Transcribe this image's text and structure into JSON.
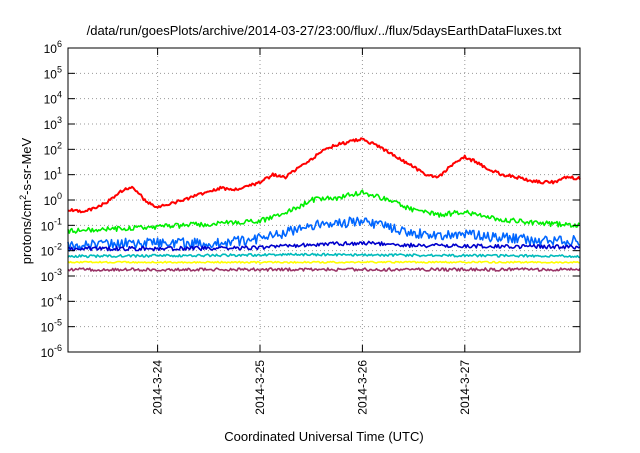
{
  "chart_data": {
    "type": "line",
    "title": "/data/run/goesPlots/archive/2014-03-27/23:00/flux/../flux/5daysEarthDataFluxes.txt",
    "xlabel": "Coordinated Universal Time (UTC)",
    "ylabel_main": "protons/cm",
    "ylabel_sup": "2",
    "ylabel_rest": "-s-sr-MeV",
    "y_scale": "log",
    "ylim": [
      1e-06,
      1000000.0
    ],
    "xlim": [
      "2014-03-23 03:00",
      "2014-03-28 03:00"
    ],
    "yticks": [
      {
        "value": 1e-06,
        "base": "10",
        "exp": "-6"
      },
      {
        "value": 1e-05,
        "base": "10",
        "exp": "-5"
      },
      {
        "value": 0.0001,
        "base": "10",
        "exp": "-4"
      },
      {
        "value": 0.001,
        "base": "10",
        "exp": "-3"
      },
      {
        "value": 0.01,
        "base": "10",
        "exp": "-2"
      },
      {
        "value": 0.1,
        "base": "10",
        "exp": "-1"
      },
      {
        "value": 1,
        "base": "10",
        "exp": "0"
      },
      {
        "value": 10.0,
        "base": "10",
        "exp": "1"
      },
      {
        "value": 100.0,
        "base": "10",
        "exp": "2"
      },
      {
        "value": 1000.0,
        "base": "10",
        "exp": "3"
      },
      {
        "value": 10000.0,
        "base": "10",
        "exp": "4"
      },
      {
        "value": 100000.0,
        "base": "10",
        "exp": "5"
      },
      {
        "value": 1000000.0,
        "base": "10",
        "exp": "6"
      }
    ],
    "xticks": [
      {
        "time": "2014-03-24 00:00",
        "label": "2014-3-24"
      },
      {
        "time": "2014-03-25 00:00",
        "label": "2014-3-25"
      },
      {
        "time": "2014-03-26 00:00",
        "label": "2014-3-26"
      },
      {
        "time": "2014-03-27 00:00",
        "label": "2014-3-27"
      }
    ],
    "grid": true,
    "legend": "none",
    "series": [
      {
        "color": "#ff0000",
        "jitter": 0.06,
        "x": [
          "2014-03-23 03:00",
          "2014-03-23 06:00",
          "2014-03-23 09:00",
          "2014-03-23 12:00",
          "2014-03-23 15:00",
          "2014-03-23 18:00",
          "2014-03-23 21:00",
          "2014-03-24 00:00",
          "2014-03-24 03:00",
          "2014-03-24 06:00",
          "2014-03-24 09:00",
          "2014-03-24 12:00",
          "2014-03-24 15:00",
          "2014-03-24 18:00",
          "2014-03-24 21:00",
          "2014-03-25 00:00",
          "2014-03-25 03:00",
          "2014-03-25 06:00",
          "2014-03-25 09:00",
          "2014-03-25 12:00",
          "2014-03-25 15:00",
          "2014-03-25 18:00",
          "2014-03-25 21:00",
          "2014-03-26 00:00",
          "2014-03-26 03:00",
          "2014-03-26 06:00",
          "2014-03-26 09:00",
          "2014-03-26 12:00",
          "2014-03-26 15:00",
          "2014-03-26 18:00",
          "2014-03-26 21:00",
          "2014-03-27 00:00",
          "2014-03-27 03:00",
          "2014-03-27 06:00",
          "2014-03-27 09:00",
          "2014-03-27 12:00",
          "2014-03-27 15:00",
          "2014-03-27 18:00",
          "2014-03-27 21:00",
          "2014-03-28 00:00",
          "2014-03-28 03:00"
        ],
        "y": [
          0.4,
          0.35,
          0.45,
          0.8,
          2.0,
          3.5,
          1.0,
          0.5,
          0.7,
          1.0,
          1.5,
          2.0,
          3.0,
          2.5,
          3.5,
          5.0,
          10,
          8,
          18,
          40,
          100,
          150,
          200,
          250,
          150,
          80,
          40,
          20,
          10,
          8,
          25,
          50,
          30,
          15,
          10,
          8,
          6,
          5,
          5,
          8,
          7
        ]
      },
      {
        "color": "#00ee00",
        "jitter": 0.1,
        "x": [
          "2014-03-23 03:00",
          "2014-03-23 12:00",
          "2014-03-23 21:00",
          "2014-03-24 06:00",
          "2014-03-24 15:00",
          "2014-03-25 00:00",
          "2014-03-25 06:00",
          "2014-03-25 12:00",
          "2014-03-25 18:00",
          "2014-03-26 00:00",
          "2014-03-26 06:00",
          "2014-03-26 12:00",
          "2014-03-26 18:00",
          "2014-03-27 00:00",
          "2014-03-27 06:00",
          "2014-03-27 12:00",
          "2014-03-27 18:00",
          "2014-03-28 03:00"
        ],
        "y": [
          0.06,
          0.07,
          0.08,
          0.1,
          0.12,
          0.15,
          0.3,
          1.0,
          1.2,
          2.0,
          1.0,
          0.4,
          0.25,
          0.35,
          0.2,
          0.15,
          0.12,
          0.1
        ]
      },
      {
        "color": "#0066ff",
        "jitter": 0.2,
        "x": [
          "2014-03-23 03:00",
          "2014-03-23 12:00",
          "2014-03-23 21:00",
          "2014-03-24 06:00",
          "2014-03-24 15:00",
          "2014-03-25 00:00",
          "2014-03-25 06:00",
          "2014-03-25 12:00",
          "2014-03-25 18:00",
          "2014-03-26 00:00",
          "2014-03-26 06:00",
          "2014-03-26 12:00",
          "2014-03-26 18:00",
          "2014-03-27 00:00",
          "2014-03-27 06:00",
          "2014-03-27 12:00",
          "2014-03-27 18:00",
          "2014-03-28 03:00"
        ],
        "y": [
          0.015,
          0.02,
          0.02,
          0.02,
          0.02,
          0.03,
          0.05,
          0.1,
          0.12,
          0.15,
          0.08,
          0.05,
          0.04,
          0.05,
          0.035,
          0.03,
          0.025,
          0.025
        ]
      },
      {
        "color": "#0000cc",
        "jitter": 0.08,
        "x": [
          "2014-03-23 03:00",
          "2014-03-24 00:00",
          "2014-03-25 00:00",
          "2014-03-25 12:00",
          "2014-03-26 00:00",
          "2014-03-26 12:00",
          "2014-03-27 00:00",
          "2014-03-28 03:00"
        ],
        "y": [
          0.012,
          0.012,
          0.013,
          0.017,
          0.02,
          0.016,
          0.015,
          0.014
        ]
      },
      {
        "color": "#00bbbb",
        "jitter": 0.05,
        "x": [
          "2014-03-23 03:00",
          "2014-03-25 12:00",
          "2014-03-28 03:00"
        ],
        "y": [
          0.006,
          0.007,
          0.006
        ]
      },
      {
        "color": "#ffff00",
        "jitter": 0.03,
        "x": [
          "2014-03-23 03:00",
          "2014-03-25 12:00",
          "2014-03-28 03:00"
        ],
        "y": [
          0.0035,
          0.0035,
          0.0035
        ]
      },
      {
        "color": "#993366",
        "jitter": 0.06,
        "x": [
          "2014-03-23 03:00",
          "2014-03-25 12:00",
          "2014-03-28 03:00"
        ],
        "y": [
          0.0018,
          0.0018,
          0.0018
        ]
      }
    ]
  }
}
